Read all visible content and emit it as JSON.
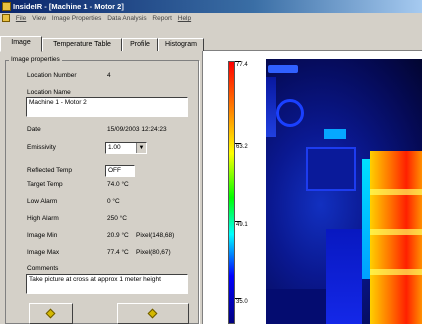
{
  "window": {
    "title": "InsideIR - [Machine 1 - Motor 2]"
  },
  "menu": [
    "File",
    "View",
    "Image Properties",
    "Data Analysis",
    "Report",
    "Help"
  ],
  "tabs": [
    "Image",
    "Temperature Table",
    "Profile",
    "Histogram"
  ],
  "group_title": "Image properties",
  "fields": {
    "location_number": {
      "label": "Location Number",
      "value": "4"
    },
    "location_name": {
      "label": "Location Name",
      "value": "Machine 1 - Motor 2"
    },
    "date": {
      "label": "Date",
      "value": "15/09/2003 12:24:23"
    },
    "emissivity": {
      "label": "Emissivity",
      "value": "1.00"
    },
    "reflected_temp": {
      "label": "Reflected Temp",
      "value": "OFF"
    },
    "target_temp": {
      "label": "Target Temp",
      "value": "74.0 °C"
    },
    "low_alarm": {
      "label": "Low Alarm",
      "value": "0 °C"
    },
    "high_alarm": {
      "label": "High Alarm",
      "value": "250 °C"
    },
    "image_min": {
      "label": "Image Min",
      "value": "20.9 °C",
      "pixel": "Pixel(148,68)"
    },
    "image_max": {
      "label": "Image Max",
      "value": "77.4 °C",
      "pixel": "Pixel(80,67)"
    },
    "comments": {
      "label": "Comments",
      "value": "Take picture at cross at approx 1 meter height"
    }
  },
  "scale": {
    "labels": [
      "77.4",
      "63.2",
      "49.1",
      "35.0"
    ]
  },
  "icons": {
    "app": "app-icon",
    "nav": "diamond-icon"
  },
  "colors": {
    "titlebar": "#0a246a",
    "face": "#d4d0c8",
    "scale_top": "#ff0000",
    "scale_bottom": "#000080"
  }
}
